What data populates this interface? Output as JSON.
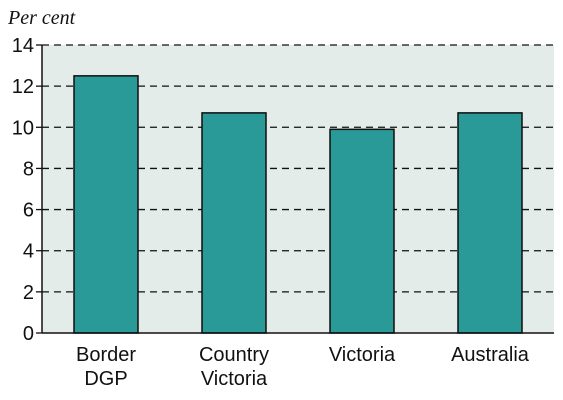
{
  "chart_data": {
    "type": "bar",
    "ylabel": "Per cent",
    "categories": [
      [
        "Border",
        "DGP"
      ],
      [
        "Country",
        "Victoria"
      ],
      [
        "Victoria"
      ],
      [
        "Australia"
      ]
    ],
    "values": [
      12.5,
      10.7,
      9.9,
      10.7
    ],
    "ylim": [
      0,
      14
    ],
    "yticks": [
      0,
      2,
      4,
      6,
      8,
      10,
      12,
      14
    ],
    "grid": true,
    "grid_style": "dashed",
    "colors": {
      "bar": "#2a9a98",
      "bar_outline": "#0e0e0e",
      "plot_bg": "#e3ece8",
      "axis": "#111111",
      "grid": "#111111"
    }
  }
}
